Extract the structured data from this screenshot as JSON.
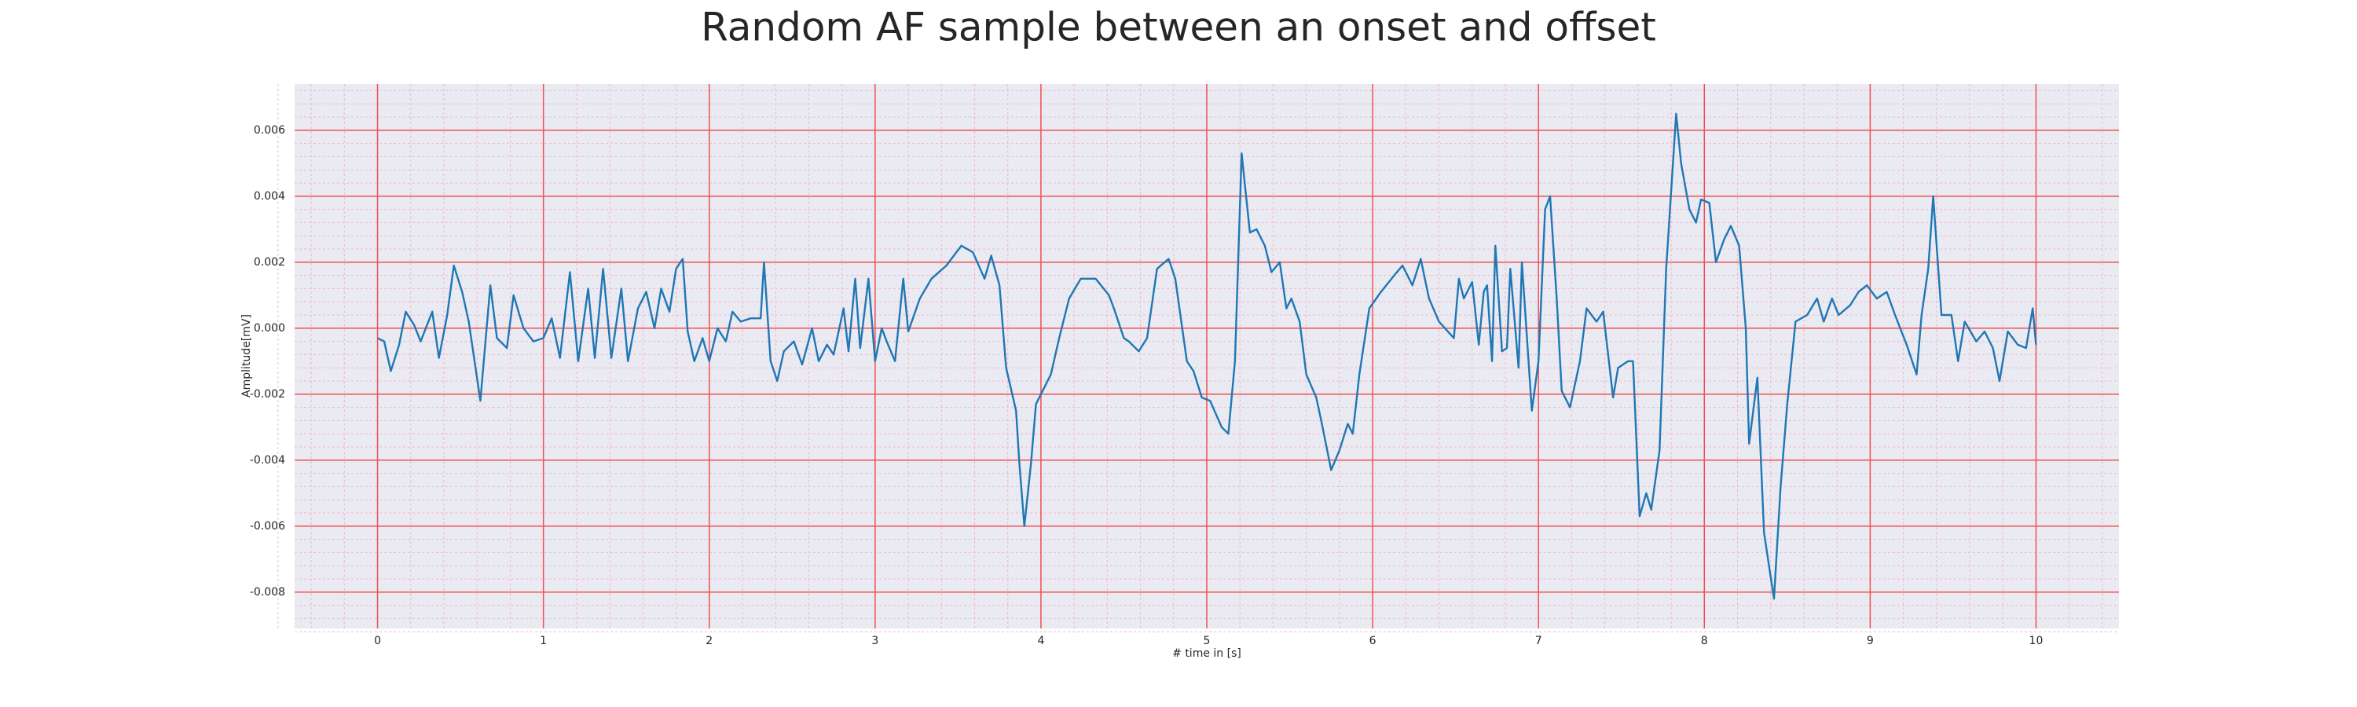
{
  "chart_data": {
    "type": "line",
    "title": "Random AF sample between an onset and offset",
    "xlabel": "# time in [s]",
    "ylabel": "Amplitude[mV]",
    "color": "#1f77b4",
    "grid": true,
    "xlim": [
      -0.5,
      10.5
    ],
    "ylim": [
      -0.0091,
      0.0074
    ],
    "xticks": [
      0,
      1,
      2,
      3,
      4,
      5,
      6,
      7,
      8,
      9,
      10
    ],
    "yticks": [
      -0.008,
      -0.006,
      -0.004,
      -0.002,
      {
        "value": 0,
        "label": "0.000"
      },
      0.002,
      0.004,
      0.006
    ],
    "x": [
      0,
      0.04,
      0.08,
      0.13,
      0.17,
      0.22,
      0.26,
      0.33,
      0.37,
      0.42,
      0.46,
      0.51,
      0.55,
      0.62,
      0.68,
      0.72,
      0.78,
      0.82,
      0.88,
      0.94,
      1.0,
      1.05,
      1.1,
      1.16,
      1.21,
      1.27,
      1.31,
      1.36,
      1.41,
      1.47,
      1.51,
      1.57,
      1.62,
      1.67,
      1.71,
      1.76,
      1.8,
      1.84,
      1.87,
      1.91,
      1.96,
      2.0,
      2.05,
      2.1,
      2.14,
      2.19,
      2.25,
      2.31,
      2.33,
      2.37,
      2.41,
      2.45,
      2.51,
      2.56,
      2.62,
      2.66,
      2.71,
      2.75,
      2.81,
      2.84,
      2.88,
      2.91,
      2.96,
      3.0,
      3.04,
      3.07,
      3.12,
      3.17,
      3.2,
      3.27,
      3.34,
      3.43,
      3.52,
      3.59,
      3.66,
      3.7,
      3.75,
      3.79,
      3.85,
      3.87,
      3.9,
      3.94,
      3.97,
      4.02,
      4.06,
      4.11,
      4.17,
      4.24,
      4.33,
      4.41,
      4.44,
      4.5,
      4.53,
      4.59,
      4.64,
      4.7,
      4.77,
      4.81,
      4.88,
      4.92,
      4.97,
      5.02,
      5.09,
      5.13,
      5.17,
      5.21,
      5.26,
      5.3,
      5.35,
      5.39,
      5.44,
      5.48,
      5.51,
      5.56,
      5.6,
      5.66,
      5.69,
      5.75,
      5.8,
      5.85,
      5.88,
      5.92,
      5.98,
      6.05,
      6.13,
      6.18,
      6.24,
      6.29,
      6.34,
      6.4,
      6.49,
      6.52,
      6.55,
      6.6,
      6.64,
      6.67,
      6.69,
      6.72,
      6.74,
      6.78,
      6.81,
      6.83,
      6.88,
      6.9,
      6.96,
      7.0,
      7.04,
      7.07,
      7.11,
      7.14,
      7.19,
      7.25,
      7.29,
      7.35,
      7.39,
      7.45,
      7.48,
      7.54,
      7.57,
      7.61,
      7.65,
      7.68,
      7.73,
      7.77,
      7.83,
      7.86,
      7.91,
      7.95,
      7.98,
      8.03,
      8.07,
      8.12,
      8.16,
      8.21,
      8.25,
      8.27,
      8.32,
      8.36,
      8.42,
      8.46,
      8.5,
      8.55,
      8.62,
      8.68,
      8.72,
      8.77,
      8.81,
      8.88,
      8.93,
      8.98,
      9.04,
      9.1,
      9.15,
      9.22,
      9.28,
      9.31,
      9.35,
      9.38,
      9.43,
      9.49,
      9.53,
      9.57,
      9.64,
      9.69,
      9.74,
      9.78,
      9.83,
      9.89,
      9.94,
      9.98,
      10.0
    ],
    "values": [
      -0.0003,
      -0.0004,
      -0.0013,
      -0.0005,
      0.0005,
      0.0001,
      -0.0004,
      0.0005,
      -0.0009,
      0.0004,
      0.0019,
      0.0011,
      0.0002,
      -0.0022,
      0.0013,
      -0.0003,
      -0.0006,
      0.001,
      0.0,
      -0.0004,
      -0.0003,
      0.0003,
      -0.0009,
      0.0017,
      -0.001,
      0.0012,
      -0.0009,
      0.0018,
      -0.0009,
      0.0012,
      -0.001,
      0.0006,
      0.0011,
      0.0,
      0.0012,
      0.0005,
      0.0018,
      0.0021,
      -0.0001,
      -0.001,
      -0.0003,
      -0.001,
      0.0,
      -0.0004,
      0.0005,
      0.0002,
      0.0003,
      0.0003,
      0.002,
      -0.001,
      -0.0016,
      -0.0007,
      -0.0004,
      -0.0011,
      0.0,
      -0.001,
      -0.0005,
      -0.0008,
      0.0006,
      -0.0007,
      0.0015,
      -0.0006,
      0.0015,
      -0.001,
      0.0,
      -0.0004,
      -0.001,
      0.0015,
      -0.0001,
      0.0009,
      0.0015,
      0.0019,
      0.0025,
      0.0023,
      0.0015,
      0.0022,
      0.0013,
      -0.0012,
      -0.0025,
      -0.0041,
      -0.006,
      -0.0041,
      -0.0023,
      -0.0018,
      -0.0014,
      -0.0003,
      0.0009,
      0.0015,
      0.0015,
      0.001,
      0.0006,
      -0.0003,
      -0.0004,
      -0.0007,
      -0.0003,
      0.0018,
      0.0021,
      0.0015,
      -0.001,
      -0.0013,
      -0.0021,
      -0.0022,
      -0.003,
      -0.0032,
      -0.001,
      0.0053,
      0.0029,
      0.003,
      0.0025,
      0.0017,
      0.002,
      0.0006,
      0.0009,
      0.0002,
      -0.0014,
      -0.0021,
      -0.0028,
      -0.0043,
      -0.0037,
      -0.0029,
      -0.0032,
      -0.0014,
      0.0006,
      0.0011,
      0.0016,
      0.0019,
      0.0013,
      0.0021,
      0.0009,
      0.0002,
      -0.0003,
      0.0015,
      0.0009,
      0.0014,
      -0.0005,
      0.0011,
      0.0013,
      -0.001,
      0.0025,
      -0.0007,
      -0.0006,
      0.0018,
      -0.0012,
      0.002,
      -0.0025,
      -0.001,
      0.0036,
      0.004,
      0.0009,
      -0.0019,
      -0.0024,
      -0.001,
      0.0006,
      0.0002,
      0.0005,
      -0.0021,
      -0.0012,
      -0.001,
      -0.001,
      -0.0057,
      -0.005,
      -0.0055,
      -0.0037,
      0.0018,
      0.0065,
      0.005,
      0.0036,
      0.0032,
      0.0039,
      0.0038,
      0.002,
      0.0027,
      0.0031,
      0.0025,
      0.0,
      -0.0035,
      -0.0015,
      -0.0062,
      -0.0082,
      -0.0048,
      -0.0023,
      0.0002,
      0.0004,
      0.0009,
      0.0002,
      0.0009,
      0.0004,
      0.0007,
      0.0011,
      0.0013,
      0.0009,
      0.0011,
      0.0004,
      -0.0005,
      -0.0014,
      0.0004,
      0.0018,
      0.004,
      0.0004,
      0.0004,
      -0.001,
      0.0002,
      -0.0004,
      -0.0001,
      -0.0006,
      -0.0016,
      -0.0001,
      -0.0005,
      -0.0006,
      0.0006,
      -0.0005
    ]
  }
}
